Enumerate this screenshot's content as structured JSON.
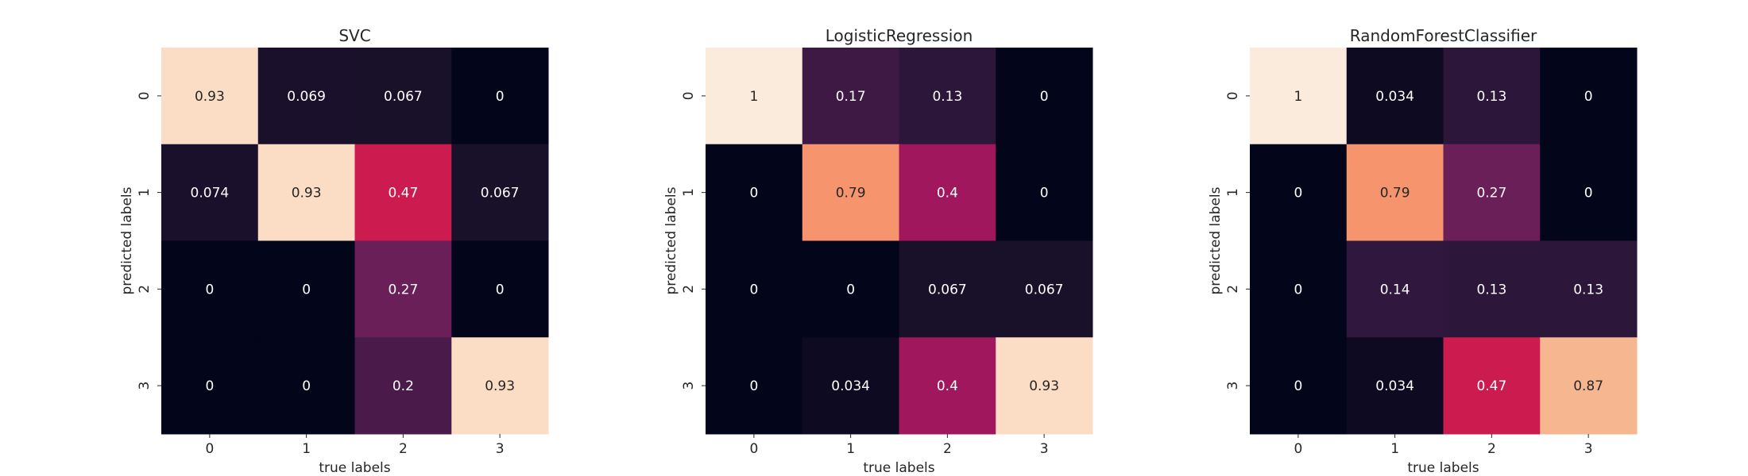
{
  "chart_data": [
    {
      "type": "heatmap",
      "title": "SVC",
      "xlabel": "true labels",
      "ylabel": "predicted labels",
      "x_categories": [
        "0",
        "1",
        "2",
        "3"
      ],
      "y_categories": [
        "0",
        "1",
        "2",
        "3"
      ],
      "vmin": 0,
      "vmax": 1,
      "colormap": "rocket",
      "colorbar": false,
      "annotations": true,
      "values": [
        [
          0.93,
          0.069,
          0.067,
          0
        ],
        [
          0.074,
          0.93,
          0.47,
          0.067
        ],
        [
          0,
          0,
          0.27,
          0
        ],
        [
          0,
          0,
          0.2,
          0.93
        ]
      ],
      "labels": [
        [
          "0.93",
          "0.069",
          "0.067",
          "0"
        ],
        [
          "0.074",
          "0.93",
          "0.47",
          "0.067"
        ],
        [
          "0",
          "0",
          "0.27",
          "0"
        ],
        [
          "0",
          "0",
          "0.2",
          "0.93"
        ]
      ]
    },
    {
      "type": "heatmap",
      "title": "LogisticRegression",
      "xlabel": "true labels",
      "ylabel": "predicted labels",
      "x_categories": [
        "0",
        "1",
        "2",
        "3"
      ],
      "y_categories": [
        "0",
        "1",
        "2",
        "3"
      ],
      "vmin": 0,
      "vmax": 1,
      "colormap": "rocket",
      "colorbar": false,
      "annotations": true,
      "values": [
        [
          1,
          0.17,
          0.13,
          0
        ],
        [
          0,
          0.79,
          0.4,
          0
        ],
        [
          0,
          0,
          0.067,
          0.067
        ],
        [
          0,
          0.034,
          0.4,
          0.93
        ]
      ],
      "labels": [
        [
          "1",
          "0.17",
          "0.13",
          "0"
        ],
        [
          "0",
          "0.79",
          "0.4",
          "0"
        ],
        [
          "0",
          "0",
          "0.067",
          "0.067"
        ],
        [
          "0",
          "0.034",
          "0.4",
          "0.93"
        ]
      ]
    },
    {
      "type": "heatmap",
      "title": "RandomForestClassifier",
      "xlabel": "true labels",
      "ylabel": "predicted labels",
      "x_categories": [
        "0",
        "1",
        "2",
        "3"
      ],
      "y_categories": [
        "0",
        "1",
        "2",
        "3"
      ],
      "vmin": 0,
      "vmax": 1,
      "colormap": "rocket",
      "colorbar": false,
      "annotations": true,
      "values": [
        [
          1,
          0.034,
          0.13,
          0
        ],
        [
          0,
          0.79,
          0.27,
          0
        ],
        [
          0,
          0.14,
          0.13,
          0.13
        ],
        [
          0,
          0.034,
          0.47,
          0.87
        ]
      ],
      "labels": [
        [
          "1",
          "0.034",
          "0.13",
          "0"
        ],
        [
          "0",
          "0.79",
          "0.27",
          "0"
        ],
        [
          "0",
          "0.14",
          "0.13",
          "0.13"
        ],
        [
          "0",
          "0.034",
          "0.47",
          "0.87"
        ]
      ]
    }
  ]
}
